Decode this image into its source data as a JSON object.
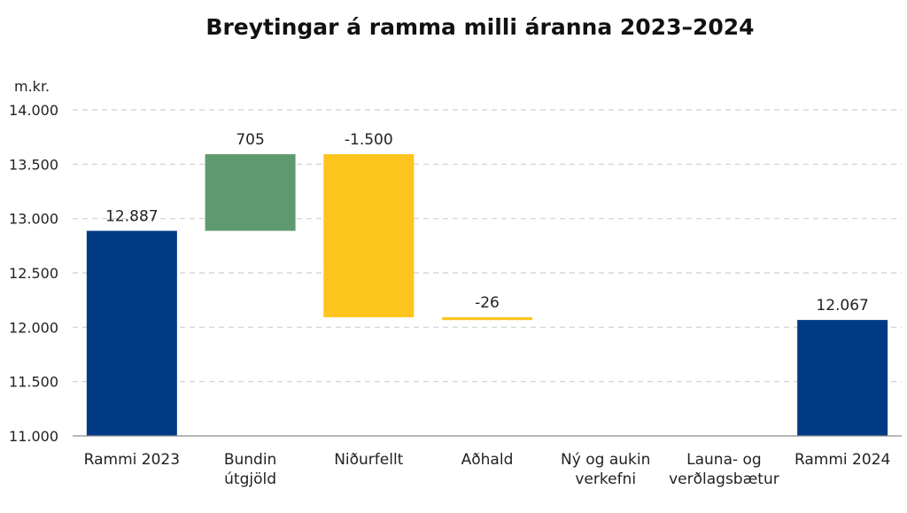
{
  "chart_data": {
    "type": "bar",
    "subtype": "waterfall",
    "title": "Breytingar á ramma milli áranna 2023–2024",
    "unit_label": "m.kr.",
    "ylim": [
      11000,
      14000
    ],
    "y_ticks": [
      11000,
      11500,
      12000,
      12500,
      13000,
      13500,
      14000
    ],
    "y_tick_labels": [
      "11.000",
      "11.500",
      "12.000",
      "12.500",
      "13.000",
      "13.500",
      "14.000"
    ],
    "grid": true,
    "categories": [
      [
        "Rammi 2023"
      ],
      [
        "Bundin",
        "útgjöld"
      ],
      [
        "Niðurfellt"
      ],
      [
        "Aðhald"
      ],
      [
        "Ný og aukin",
        "verkefni"
      ],
      [
        "Launa- og",
        "verðlagsbætur"
      ],
      [
        "Rammi 2024"
      ]
    ],
    "steps": [
      {
        "kind": "total",
        "value": 12887,
        "label": "12.887"
      },
      {
        "kind": "delta",
        "value": 705,
        "label": "705"
      },
      {
        "kind": "delta",
        "value": -1500,
        "label": "-1.500"
      },
      {
        "kind": "delta",
        "value": -26,
        "label": "-26"
      },
      {
        "kind": "delta",
        "value": 0,
        "label": ""
      },
      {
        "kind": "delta",
        "value": 0,
        "label": ""
      },
      {
        "kind": "total",
        "value": 12067,
        "label": "12.067"
      }
    ],
    "colors": {
      "total": "#003A85",
      "increase": "#5F9A6E",
      "decrease": "#FCC41D"
    }
  }
}
